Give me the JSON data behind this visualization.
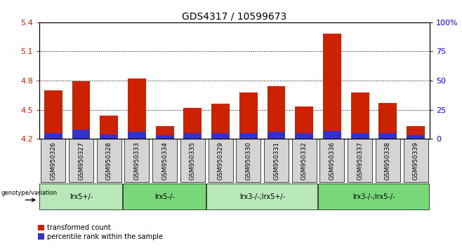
{
  "title": "GDS4317 / 10599673",
  "samples": [
    "GSM950326",
    "GSM950327",
    "GSM950328",
    "GSM950333",
    "GSM950334",
    "GSM950335",
    "GSM950329",
    "GSM950330",
    "GSM950331",
    "GSM950332",
    "GSM950336",
    "GSM950337",
    "GSM950338",
    "GSM950339"
  ],
  "red_values": [
    4.7,
    4.79,
    4.44,
    4.82,
    4.33,
    4.52,
    4.56,
    4.68,
    4.74,
    4.53,
    5.28,
    4.68,
    4.57,
    4.33
  ],
  "blue_values": [
    5.0,
    8.0,
    4.0,
    6.0,
    3.0,
    5.0,
    5.0,
    5.0,
    6.0,
    5.0,
    7.0,
    5.0,
    5.0,
    3.0
  ],
  "ymin": 4.2,
  "ymax": 5.4,
  "yticks": [
    4.2,
    4.5,
    4.8,
    5.1,
    5.4
  ],
  "right_yticks": [
    0,
    25,
    50,
    75,
    100
  ],
  "right_ylabels": [
    "0",
    "25",
    "50",
    "75",
    "100%"
  ],
  "groups": [
    {
      "label": "lrx5+/-",
      "start": 0,
      "end": 3,
      "color": "#b8e8b8"
    },
    {
      "label": "lrx5-/-",
      "start": 3,
      "end": 6,
      "color": "#78d878"
    },
    {
      "label": "lrx3-/-;lrx5+/-",
      "start": 6,
      "end": 10,
      "color": "#b8e8b8"
    },
    {
      "label": "lrx3-/-;lrx5-/-",
      "start": 10,
      "end": 14,
      "color": "#78d878"
    }
  ],
  "genotype_label": "genotype/variation",
  "legend_red": "transformed count",
  "legend_blue": "percentile rank within the sample",
  "blue_scale": 100,
  "bar_color_red": "#cc2200",
  "bar_color_blue": "#3333cc",
  "title_fontsize": 10,
  "tick_label_fontsize": 6.5,
  "sample_box_color": "#d4d4d4"
}
